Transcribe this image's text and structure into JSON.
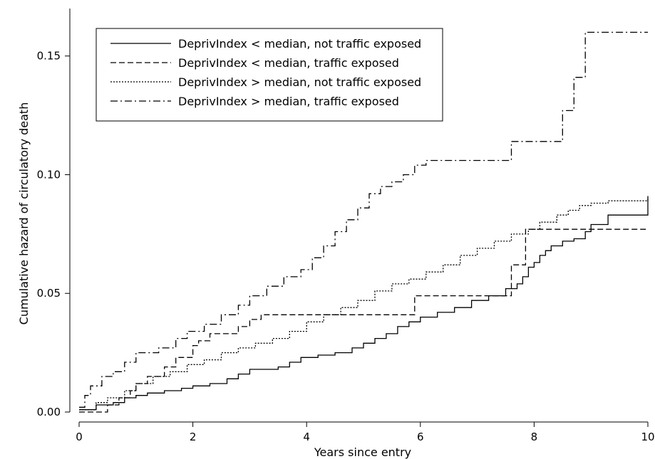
{
  "chart_data": {
    "type": "line",
    "step": true,
    "title": "",
    "xlabel": "Years since entry",
    "ylabel": "Cumulative hazard of circulatory death",
    "xlim": [
      0,
      10
    ],
    "ylim": [
      0,
      0.17
    ],
    "xticks": [
      0,
      2,
      4,
      6,
      8,
      10
    ],
    "xtick_labels": [
      "0",
      "2",
      "4",
      "6",
      "8",
      "10"
    ],
    "yticks": [
      0,
      0.05,
      0.1,
      0.15
    ],
    "ytick_labels": [
      "0.00",
      "0.05",
      "0.10",
      "0.15"
    ],
    "grid": false,
    "legend_position": "top-left",
    "series": [
      {
        "name": "DeprivIndex < median, not traffic exposed",
        "dash": "solid",
        "x": [
          0,
          0.3,
          0.6,
          0.8,
          1.0,
          1.2,
          1.5,
          1.8,
          2.0,
          2.3,
          2.6,
          2.8,
          3.0,
          3.3,
          3.5,
          3.7,
          3.9,
          4.2,
          4.5,
          4.8,
          5.0,
          5.2,
          5.4,
          5.6,
          5.8,
          6.0,
          6.3,
          6.6,
          6.9,
          7.2,
          7.5,
          7.7,
          7.8,
          7.9,
          8.0,
          8.1,
          8.2,
          8.3,
          8.5,
          8.7,
          8.9,
          9.0,
          9.3,
          10.0
        ],
        "y": [
          0.001,
          0.003,
          0.004,
          0.006,
          0.007,
          0.008,
          0.009,
          0.01,
          0.011,
          0.012,
          0.014,
          0.016,
          0.018,
          0.018,
          0.019,
          0.021,
          0.023,
          0.024,
          0.025,
          0.027,
          0.029,
          0.031,
          0.033,
          0.036,
          0.038,
          0.04,
          0.042,
          0.044,
          0.047,
          0.049,
          0.052,
          0.054,
          0.057,
          0.061,
          0.063,
          0.066,
          0.068,
          0.07,
          0.072,
          0.073,
          0.076,
          0.079,
          0.083,
          0.091
        ]
      },
      {
        "name": "DeprivIndex < median, traffic exposed",
        "dash": "dashed",
        "x": [
          0,
          0.5,
          0.7,
          0.9,
          1.0,
          1.2,
          1.5,
          1.7,
          2.0,
          2.1,
          2.3,
          2.8,
          3.0,
          3.2,
          5.8,
          5.9,
          7.5,
          7.6,
          7.8,
          7.85,
          10.0
        ],
        "y": [
          0.0,
          0.003,
          0.006,
          0.009,
          0.012,
          0.015,
          0.019,
          0.023,
          0.028,
          0.03,
          0.033,
          0.036,
          0.039,
          0.041,
          0.041,
          0.049,
          0.049,
          0.062,
          0.062,
          0.077,
          0.077
        ]
      },
      {
        "name": "DeprivIndex > median, not traffic exposed",
        "dash": "dotted",
        "x": [
          0,
          0.3,
          0.5,
          0.8,
          1.0,
          1.3,
          1.6,
          1.9,
          2.2,
          2.5,
          2.8,
          3.1,
          3.4,
          3.7,
          4.0,
          4.3,
          4.6,
          4.9,
          5.2,
          5.5,
          5.8,
          6.1,
          6.4,
          6.7,
          7.0,
          7.3,
          7.6,
          7.9,
          8.1,
          8.4,
          8.6,
          8.8,
          9.0,
          9.3,
          10.0
        ],
        "y": [
          0.001,
          0.004,
          0.006,
          0.009,
          0.012,
          0.015,
          0.017,
          0.02,
          0.022,
          0.025,
          0.027,
          0.029,
          0.031,
          0.034,
          0.038,
          0.041,
          0.044,
          0.047,
          0.051,
          0.054,
          0.056,
          0.059,
          0.062,
          0.066,
          0.069,
          0.072,
          0.075,
          0.077,
          0.08,
          0.083,
          0.085,
          0.087,
          0.088,
          0.089,
          0.09
        ]
      },
      {
        "name": "DeprivIndex > median, traffic exposed",
        "dash": "dashdot",
        "x": [
          0,
          0.1,
          0.2,
          0.4,
          0.6,
          0.8,
          1.0,
          1.4,
          1.7,
          1.9,
          2.2,
          2.5,
          2.8,
          3.0,
          3.3,
          3.6,
          3.9,
          4.1,
          4.3,
          4.5,
          4.7,
          4.9,
          5.1,
          5.3,
          5.5,
          5.7,
          5.9,
          6.1,
          6.5,
          7.0,
          7.6,
          8.0,
          8.3,
          8.5,
          8.7,
          8.9,
          10.0
        ],
        "y": [
          0.002,
          0.007,
          0.011,
          0.015,
          0.017,
          0.021,
          0.025,
          0.027,
          0.031,
          0.034,
          0.037,
          0.041,
          0.045,
          0.049,
          0.053,
          0.057,
          0.06,
          0.065,
          0.07,
          0.076,
          0.081,
          0.086,
          0.092,
          0.095,
          0.097,
          0.1,
          0.104,
          0.106,
          0.106,
          0.106,
          0.114,
          0.114,
          0.114,
          0.127,
          0.141,
          0.16,
          0.16
        ]
      }
    ]
  }
}
